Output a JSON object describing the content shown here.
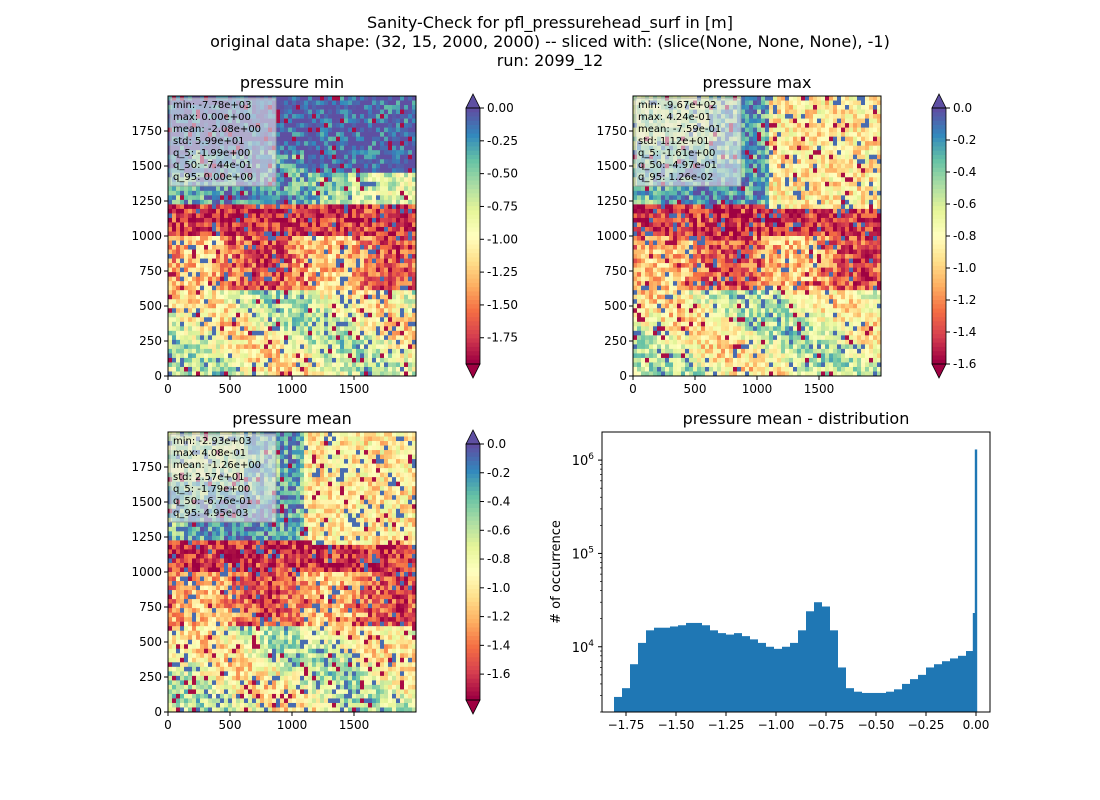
{
  "figure": {
    "suptitle": [
      "Sanity-Check for pfl_pressurehead_surf in [m]",
      "original data shape: (32, 15, 2000, 2000) -- sliced with: (slice(None, None, None), -1)",
      "run: 2099_12"
    ]
  },
  "chart_data": [
    {
      "type": "heatmap",
      "title": "pressure min",
      "xlim": [
        0,
        2000
      ],
      "ylim": [
        0,
        2000
      ],
      "xticks": [
        0,
        500,
        1000,
        1500
      ],
      "yticks": [
        0,
        250,
        500,
        750,
        1000,
        1250,
        1500,
        1750
      ],
      "colormap": "Spectral",
      "colorbar": {
        "range": [
          -1.95,
          0.0
        ],
        "ticks": [
          "0.00",
          "-0.25",
          "-0.50",
          "-0.75",
          "-1.00",
          "-1.25",
          "-1.50",
          "-1.75"
        ],
        "extend": "both"
      },
      "stats": [
        "min: -7.78e+03",
        "max: 0.00e+00",
        "mean: -2.08e+00",
        "std: 5.99e+01",
        "q_5: -1.99e+00",
        "q_50: -7.44e-01",
        "q_95: 0.00e+00"
      ]
    },
    {
      "type": "heatmap",
      "title": "pressure max",
      "xlim": [
        0,
        2000
      ],
      "ylim": [
        0,
        2000
      ],
      "xticks": [
        0,
        500,
        1000,
        1500
      ],
      "yticks": [
        0,
        250,
        500,
        750,
        1000,
        1250,
        1500,
        1750
      ],
      "colormap": "Spectral",
      "colorbar": {
        "range": [
          -1.6,
          0.0
        ],
        "ticks": [
          "0.0",
          "-0.2",
          "-0.4",
          "-0.6",
          "-0.8",
          "-1.0",
          "-1.2",
          "-1.4",
          "-1.6"
        ],
        "extend": "both"
      },
      "stats": [
        "min: -9.67e+02",
        "max: 4.24e-01",
        "mean: -7.59e-01",
        "std: 1.12e+01",
        "q_5: -1.61e+00",
        "q_50: -4.97e-01",
        "q_95: 1.26e-02"
      ]
    },
    {
      "type": "heatmap",
      "title": "pressure mean",
      "xlim": [
        0,
        2000
      ],
      "ylim": [
        0,
        2000
      ],
      "xticks": [
        0,
        500,
        1000,
        1500
      ],
      "yticks": [
        0,
        250,
        500,
        750,
        1000,
        1250,
        1500,
        1750
      ],
      "colormap": "Spectral",
      "colorbar": {
        "range": [
          -1.78,
          0.0
        ],
        "ticks": [
          "0.0",
          "-0.2",
          "-0.4",
          "-0.6",
          "-0.8",
          "-1.0",
          "-1.2",
          "-1.4",
          "-1.6"
        ],
        "extend": "both"
      },
      "stats": [
        "min: -2.93e+03",
        "max: 4.08e-01",
        "mean: -1.26e+00",
        "std: 2.57e+01",
        "q_5: -1.79e+00",
        "q_50: -6.76e-01",
        "q_95: 4.95e-03"
      ]
    },
    {
      "type": "bar",
      "title": "pressure mean - distribution",
      "xlabel": "",
      "ylabel": "# of occurrence",
      "xlim": [
        -1.87,
        0.07
      ],
      "ylim": [
        2000,
        2000000
      ],
      "yscale": "log",
      "xticks": [
        "-1.75",
        "-1.50",
        "-1.25",
        "-1.00",
        "-0.75",
        "-0.50",
        "-0.25",
        "0.00"
      ],
      "yticks": [
        "10^4",
        "10^5",
        "10^6"
      ],
      "color": "#1f77b4",
      "bin_centers": [
        -1.79,
        -1.75,
        -1.71,
        -1.67,
        -1.63,
        -1.59,
        -1.55,
        -1.51,
        -1.47,
        -1.43,
        -1.39,
        -1.35,
        -1.31,
        -1.27,
        -1.23,
        -1.19,
        -1.15,
        -1.11,
        -1.07,
        -1.03,
        -0.99,
        -0.95,
        -0.91,
        -0.87,
        -0.83,
        -0.79,
        -0.75,
        -0.71,
        -0.67,
        -0.63,
        -0.59,
        -0.55,
        -0.51,
        -0.47,
        -0.43,
        -0.39,
        -0.35,
        -0.31,
        -0.27,
        -0.23,
        -0.19,
        -0.15,
        -0.11,
        -0.07,
        -0.03,
        -0.01,
        0.0
      ],
      "counts": [
        2900,
        3600,
        6500,
        11000,
        15000,
        16000,
        16000,
        16500,
        17000,
        18000,
        18000,
        17000,
        15000,
        14000,
        13500,
        14000,
        13000,
        12000,
        11000,
        10000,
        9500,
        10000,
        11000,
        15000,
        24000,
        30000,
        27000,
        15000,
        6000,
        3600,
        3300,
        3200,
        3200,
        3200,
        3300,
        3500,
        4000,
        4500,
        5000,
        6000,
        6500,
        7000,
        7500,
        8000,
        9000,
        23000,
        1300000
      ]
    }
  ]
}
